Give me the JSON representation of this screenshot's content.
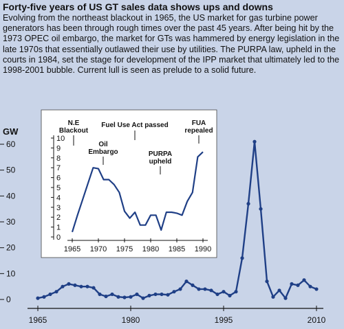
{
  "heading": "Forty-five years of US GT sales data shows ups and downs",
  "body_text": "Evolving from the northeast blackout in 1965, the US market for gas turbine power generators has been through rough times over the past 45 years.  After being hit by the 1973 OPEC oil embargo, the market for GTs was hammered by energy legislation in the late 1970s that essentially outlawed their use by utilities.  The PURPA law, upheld in the courts in 1984, set the stage for development of the IPP market that ultimately led to the 1998-2001 bubble.  Current lull is seen as prelude to a solid future.",
  "colors": {
    "background": "#c9d4e8",
    "line": "#1f3f86",
    "inset_background": "#ffffff",
    "axis": "#111111"
  },
  "chart_data": [
    {
      "type": "line",
      "title": "",
      "ylabel": "GW",
      "xlabel": "",
      "x_ticks": [
        "1965",
        "1980",
        "1995",
        "2010"
      ],
      "y_ticks": [
        "0",
        "10",
        "20",
        "30",
        "40",
        "50",
        "60"
      ],
      "xlim": [
        1965,
        2010
      ],
      "ylim": [
        0,
        60
      ],
      "grid": false,
      "x": [
        1965,
        1966,
        1967,
        1968,
        1969,
        1970,
        1971,
        1972,
        1973,
        1974,
        1975,
        1976,
        1977,
        1978,
        1979,
        1980,
        1981,
        1982,
        1983,
        1984,
        1985,
        1986,
        1987,
        1988,
        1989,
        1990,
        1991,
        1992,
        1993,
        1994,
        1995,
        1996,
        1997,
        1998,
        1999,
        2000,
        2001,
        2002,
        2003,
        2004,
        2005,
        2006,
        2007,
        2008,
        2009,
        2010
      ],
      "series": [
        {
          "values": [
            0.5,
            1,
            2,
            3,
            5,
            6,
            5.5,
            5,
            5,
            4.5,
            2,
            1.2,
            2,
            1,
            0.8,
            1,
            2,
            0.5,
            1.5,
            2,
            2,
            1.8,
            3,
            4,
            7,
            5.5,
            4,
            4,
            3.5,
            2,
            3,
            1.5,
            3,
            16,
            37,
            61,
            35,
            7,
            1,
            3.5,
            0.5,
            6,
            5.5,
            7.5,
            5,
            4
          ]
        }
      ]
    },
    {
      "type": "line",
      "title": "",
      "ylabel": "",
      "xlabel": "",
      "x_ticks": [
        "1965",
        "1970",
        "1975",
        "1980",
        "1985",
        "1990"
      ],
      "y_ticks": [
        "0",
        "1",
        "2",
        "3",
        "4",
        "5",
        "6",
        "7",
        "8",
        "9",
        "10"
      ],
      "xlim": [
        1962,
        1992
      ],
      "ylim": [
        0,
        10
      ],
      "x": [
        1965,
        1966,
        1967,
        1968,
        1969,
        1970,
        1971,
        1972,
        1973,
        1974,
        1975,
        1976,
        1977,
        1978,
        1979,
        1980,
        1981,
        1982,
        1983,
        1984,
        1985,
        1986,
        1987,
        1988,
        1989,
        1990
      ],
      "series": [
        {
          "values": [
            0.5,
            2.2,
            3.8,
            5.4,
            7,
            6.9,
            5.8,
            5.8,
            5.3,
            4.5,
            2.6,
            1.9,
            2.5,
            1.2,
            1.2,
            2.2,
            2.2,
            0.7,
            2.5,
            2.5,
            2.4,
            2.2,
            3.6,
            4.5,
            8.1,
            8.6
          ]
        }
      ],
      "annotations": [
        {
          "text": [
            "N.E",
            "Blackout"
          ],
          "x": 1965
        },
        {
          "text": [
            "Oil",
            "Embargo"
          ],
          "x": 1973
        },
        {
          "text": [
            "Fuel Use Act passed"
          ],
          "x": 1978
        },
        {
          "text": [
            "PURPA",
            "upheld"
          ],
          "x": 1984
        },
        {
          "text": [
            "FUA",
            "repealed"
          ],
          "x": 1987
        }
      ]
    }
  ]
}
